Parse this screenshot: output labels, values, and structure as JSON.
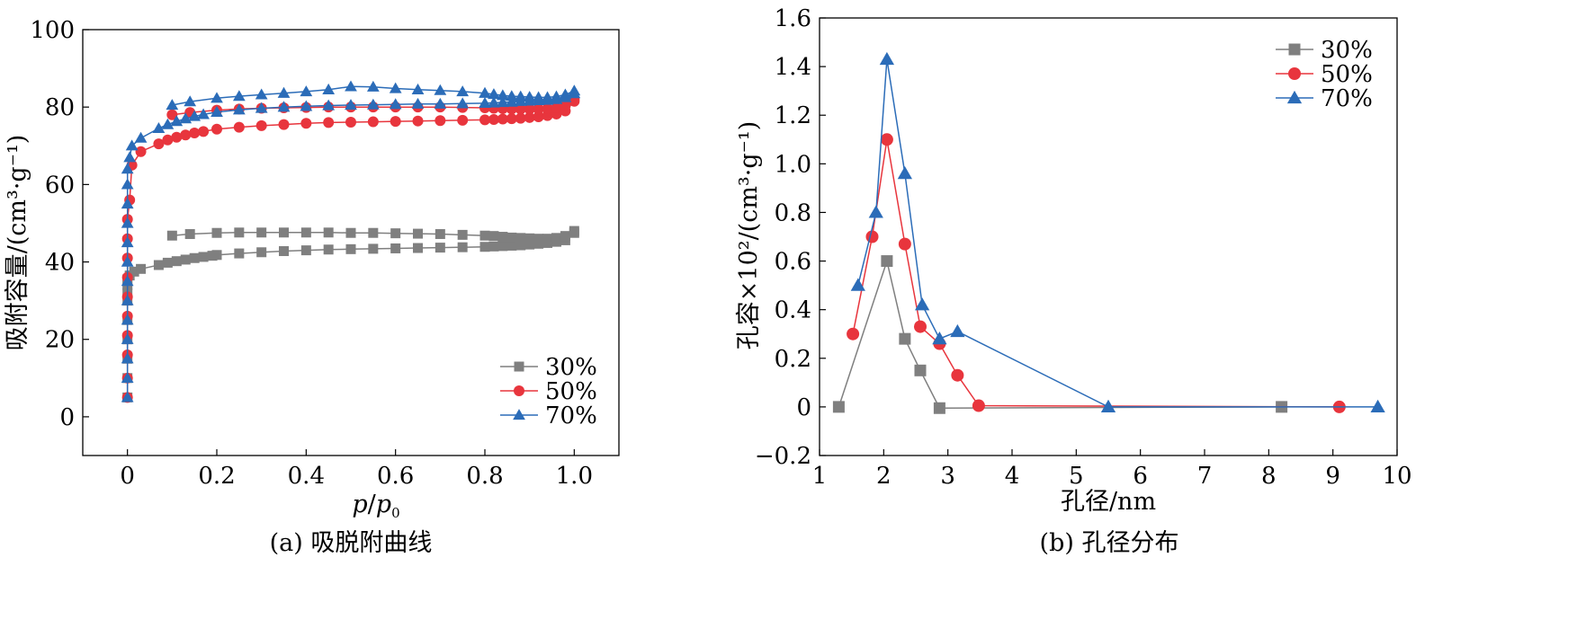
{
  "colors": {
    "s30": "#7f7f7f",
    "s50": "#e8353d",
    "s70": "#2b6cb8"
  },
  "chart_data": [
    {
      "type": "line",
      "ylabel": "吸附容量/(cm³·g⁻¹)",
      "xlabel_main": "p",
      "xlabel_sep": "/",
      "xlabel_sub_base": "p",
      "xlabel_sub": "0",
      "caption": "(a) 吸脱附曲线",
      "xlim": [
        -0.1,
        1.1
      ],
      "ylim": [
        -10,
        100
      ],
      "xticks": [
        0,
        0.2,
        0.4,
        0.6,
        0.8,
        1.0
      ],
      "xtick_labels": [
        "0",
        "0.2",
        "0.4",
        "0.6",
        "0.8",
        "1.0"
      ],
      "yticks": [
        0,
        20,
        40,
        60,
        80,
        100
      ],
      "ytick_labels": [
        "0",
        "20",
        "40",
        "60",
        "80",
        "100"
      ],
      "legend_position": "bottom-right",
      "series": [
        {
          "name": "30%",
          "color_key": "s30",
          "marker": "square",
          "branches": [
            {
              "x": [
                0.0,
                0.0,
                0.0,
                0.0,
                0.0,
                0.0,
                0.0,
                0.0,
                0.0,
                0.005,
                0.015,
                0.03,
                0.07,
                0.09,
                0.11,
                0.13,
                0.15,
                0.17,
                0.19,
                0.2,
                0.25,
                0.3,
                0.35,
                0.4,
                0.45,
                0.5,
                0.55,
                0.6,
                0.65,
                0.7,
                0.75,
                0.8,
                0.82,
                0.84,
                0.86,
                0.88,
                0.9,
                0.92,
                0.94,
                0.96,
                0.98,
                1.0
              ],
              "y": [
                5,
                10,
                15,
                20,
                25,
                30,
                32,
                34,
                35.5,
                36.5,
                37.5,
                38.2,
                39.2,
                39.8,
                40.2,
                40.6,
                41.0,
                41.3,
                41.6,
                41.8,
                42.2,
                42.5,
                42.8,
                43.0,
                43.2,
                43.3,
                43.4,
                43.5,
                43.6,
                43.7,
                43.8,
                43.9,
                44.0,
                44.1,
                44.2,
                44.3,
                44.5,
                44.7,
                44.9,
                45.2,
                45.6,
                47.5
              ]
            },
            {
              "x": [
                0.1,
                0.14,
                0.2,
                0.25,
                0.3,
                0.35,
                0.4,
                0.45,
                0.5,
                0.55,
                0.6,
                0.65,
                0.7,
                0.75,
                0.8,
                0.82,
                0.84,
                0.86,
                0.88,
                0.9,
                0.92,
                0.94,
                0.96,
                0.98,
                1.0
              ],
              "y": [
                46.8,
                47.2,
                47.5,
                47.6,
                47.6,
                47.6,
                47.6,
                47.6,
                47.5,
                47.5,
                47.4,
                47.3,
                47.2,
                47.0,
                46.8,
                46.7,
                46.5,
                46.3,
                46.2,
                46.1,
                46.0,
                46.0,
                46.2,
                46.7,
                48.0
              ]
            }
          ]
        },
        {
          "name": "50%",
          "color_key": "s50",
          "marker": "circle",
          "branches": [
            {
              "x": [
                0.0,
                0.0,
                0.0,
                0.0,
                0.0,
                0.0,
                0.0,
                0.0,
                0.0,
                0.0,
                0.005,
                0.01,
                0.03,
                0.07,
                0.09,
                0.11,
                0.13,
                0.15,
                0.17,
                0.2,
                0.25,
                0.3,
                0.35,
                0.4,
                0.45,
                0.5,
                0.55,
                0.6,
                0.65,
                0.7,
                0.75,
                0.8,
                0.82,
                0.84,
                0.86,
                0.88,
                0.9,
                0.92,
                0.94,
                0.96,
                0.98,
                1.0
              ],
              "y": [
                5,
                10,
                16,
                21,
                26,
                31,
                36,
                41,
                46,
                51,
                56,
                65,
                68.5,
                70.5,
                71.5,
                72.2,
                72.8,
                73.3,
                73.7,
                74.3,
                74.8,
                75.2,
                75.5,
                75.8,
                76.0,
                76.1,
                76.2,
                76.3,
                76.4,
                76.5,
                76.6,
                76.7,
                76.8,
                76.9,
                77.0,
                77.1,
                77.3,
                77.5,
                77.8,
                78.2,
                79.0,
                81.5
              ]
            },
            {
              "x": [
                0.1,
                0.14,
                0.2,
                0.25,
                0.3,
                0.35,
                0.4,
                0.45,
                0.5,
                0.55,
                0.6,
                0.65,
                0.7,
                0.75,
                0.8,
                0.82,
                0.84,
                0.86,
                0.88,
                0.9,
                0.92,
                0.94,
                0.96,
                0.98,
                1.0
              ],
              "y": [
                78.0,
                78.6,
                79.2,
                79.5,
                79.7,
                79.8,
                79.9,
                80.0,
                80.0,
                80.0,
                80.0,
                80.0,
                80.0,
                79.9,
                79.8,
                79.7,
                79.6,
                79.5,
                79.5,
                79.5,
                79.5,
                79.6,
                79.8,
                80.3,
                82.0
              ]
            }
          ]
        },
        {
          "name": "70%",
          "color_key": "s70",
          "marker": "triangle",
          "branches": [
            {
              "x": [
                0.0,
                0.0,
                0.0,
                0.0,
                0.0,
                0.0,
                0.0,
                0.0,
                0.0,
                0.0,
                0.0,
                0.0,
                0.0,
                0.005,
                0.01,
                0.03,
                0.07,
                0.09,
                0.11,
                0.13,
                0.15,
                0.17,
                0.2,
                0.25,
                0.3,
                0.35,
                0.4,
                0.45,
                0.5,
                0.55,
                0.6,
                0.65,
                0.7,
                0.75,
                0.8,
                0.82,
                0.84,
                0.86,
                0.88,
                0.9,
                0.92,
                0.94,
                0.96,
                0.98,
                1.0
              ],
              "y": [
                5,
                10,
                15,
                20,
                25,
                30,
                35,
                40,
                45,
                50,
                55,
                60,
                64,
                67,
                70,
                72,
                74.5,
                75.5,
                76.3,
                77.0,
                77.6,
                78.1,
                78.7,
                79.3,
                79.7,
                80.0,
                80.2,
                80.4,
                80.5,
                80.6,
                80.7,
                80.8,
                80.8,
                80.9,
                81.0,
                81.1,
                81.2,
                81.3,
                81.5,
                81.6,
                81.7,
                81.8,
                82.0,
                82.5,
                83.5
              ]
            },
            {
              "x": [
                0.1,
                0.14,
                0.2,
                0.25,
                0.3,
                0.35,
                0.4,
                0.45,
                0.5,
                0.55,
                0.6,
                0.65,
                0.7,
                0.75,
                0.8,
                0.82,
                0.84,
                0.86,
                0.88,
                0.9,
                0.92,
                0.94,
                0.96,
                0.98,
                1.0
              ],
              "y": [
                80.5,
                81.4,
                82.3,
                82.8,
                83.2,
                83.6,
                84.0,
                84.5,
                85.3,
                85.2,
                84.8,
                84.5,
                84.3,
                84.0,
                83.6,
                83.3,
                83.0,
                82.8,
                82.7,
                82.6,
                82.5,
                82.5,
                82.7,
                83.2,
                84.2
              ]
            }
          ]
        }
      ]
    },
    {
      "type": "line",
      "ylabel": "孔容×10²/(cm³·g⁻¹)",
      "xlabel": "孔径/nm",
      "caption": "(b) 孔径分布",
      "xlim": [
        1,
        10
      ],
      "ylim": [
        -0.2,
        1.6
      ],
      "xticks": [
        1,
        2,
        3,
        4,
        5,
        6,
        7,
        8,
        9,
        10
      ],
      "xtick_labels": [
        "1",
        "2",
        "3",
        "4",
        "5",
        "6",
        "7",
        "8",
        "9",
        "10"
      ],
      "yticks": [
        -0.2,
        0,
        0.2,
        0.4,
        0.6,
        0.8,
        1.0,
        1.2,
        1.4,
        1.6
      ],
      "ytick_labels": [
        "−0.2",
        "0",
        "0.2",
        "0.4",
        "0.6",
        "0.8",
        "1.0",
        "1.2",
        "1.4",
        "1.6"
      ],
      "legend_position": "top-right",
      "series": [
        {
          "name": "30%",
          "color_key": "s30",
          "marker": "square",
          "branches": [
            {
              "x": [
                1.3,
                2.05,
                2.33,
                2.57,
                2.87,
                8.2
              ],
              "y": [
                0.0,
                0.6,
                0.28,
                0.15,
                -0.005,
                0.0
              ]
            }
          ]
        },
        {
          "name": "50%",
          "color_key": "s50",
          "marker": "circle",
          "branches": [
            {
              "x": [
                1.52,
                1.82,
                2.05,
                2.33,
                2.57,
                2.87,
                3.15,
                3.48,
                9.1
              ],
              "y": [
                0.3,
                0.7,
                1.1,
                0.67,
                0.33,
                0.26,
                0.13,
                0.005,
                0.0
              ]
            }
          ]
        },
        {
          "name": "70%",
          "color_key": "s70",
          "marker": "triangle",
          "branches": [
            {
              "x": [
                1.6,
                1.88,
                2.05,
                2.33,
                2.6,
                2.87,
                3.15,
                5.5,
                9.7
              ],
              "y": [
                0.5,
                0.8,
                1.43,
                0.96,
                0.42,
                0.28,
                0.31,
                0.0,
                0.0
              ]
            }
          ]
        }
      ]
    }
  ]
}
